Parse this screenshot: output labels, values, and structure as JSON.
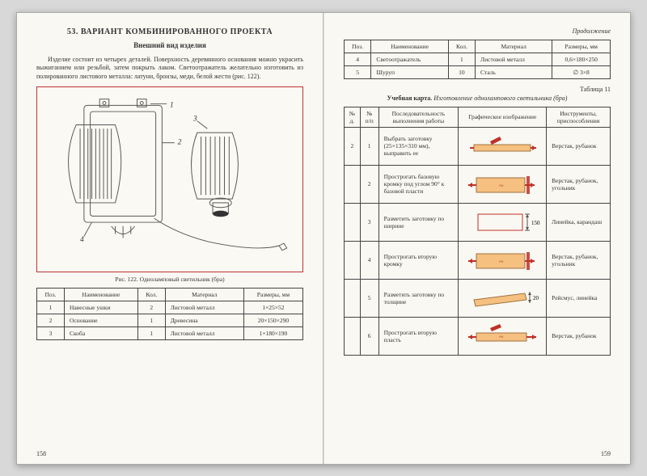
{
  "left": {
    "section_num": "53.",
    "section_title": "ВАРИАНТ КОМБИНИРОВАННОГО ПРОЕКТА",
    "subtitle": "Внешний вид изделия",
    "paragraph": "Изделие состоит из четырех деталей. Поверхность деревянного основания можно украсить выжиганием или резьбой, затем покрыть лаком. Светоотражатель желательно изготовить из полированного листового металла: латуни, бронзы, меди, белой жести (рис. 122).",
    "fig_caption": "Рис. 122. Одноламповый светильник (бра)",
    "table_headers": [
      "Поз.",
      "Наименование",
      "Кол.",
      "Материал",
      "Размеры, мм"
    ],
    "table_rows": [
      [
        "1",
        "Навесные ушки",
        "2",
        "Листовой металл",
        "1×25×52"
      ],
      [
        "2",
        "Основание",
        "1",
        "Древесина",
        "20×150×290"
      ],
      [
        "3",
        "Скоба",
        "1",
        "Листовой металл",
        "1×180×190"
      ]
    ],
    "page_num": "158"
  },
  "right": {
    "continuation": "Продолжение",
    "top_table_headers": [
      "Поз.",
      "Наименование",
      "Кол.",
      "Материал",
      "Размеры, мм"
    ],
    "top_table_rows": [
      [
        "4",
        "Светоотражатель",
        "1",
        "Листовой металл",
        "0,6×180×250"
      ],
      [
        "5",
        "Шуруп",
        "10",
        "Сталь",
        "∅ 3×8"
      ]
    ],
    "table_label": "Таблица 11",
    "table_caption_prefix": "Учебная карта.",
    "table_caption": "Изготовление однолампового светильника (бра)",
    "proc_headers": [
      "№ д.",
      "№ п/п",
      "Последовательность выполнения работы",
      "Графическое изображение",
      "Инструменты, приспособления"
    ],
    "proc_rows": [
      {
        "d": "2",
        "n": "1",
        "step": "Выбрать заготовку (25×135×310 мм), выправить ее",
        "diag": "d1",
        "tools": "Верстак, рубанок"
      },
      {
        "d": "",
        "n": "2",
        "step": "Прострогать базовую кромку под углом 90° к базовой пласти",
        "diag": "d2",
        "tools": "Верстак, рубанок, угольник"
      },
      {
        "d": "",
        "n": "3",
        "step": "Разметить заготовку по ширине",
        "diag": "d3",
        "tools": "Линейка, карандаш"
      },
      {
        "d": "",
        "n": "4",
        "step": "Прострогать вторую кромку",
        "diag": "d4",
        "tools": "Верстак, рубанок, угольник"
      },
      {
        "d": "",
        "n": "5",
        "step": "Разметить заготовку по толщине",
        "diag": "d5",
        "tools": "Рейсмус, линейка"
      },
      {
        "d": "",
        "n": "6",
        "step": "Прострогать вторую пласть",
        "diag": "d6",
        "tools": "Верстак, рубанок"
      }
    ],
    "page_num": "159"
  },
  "colors": {
    "red": "#c03028",
    "stroke": "#555"
  }
}
